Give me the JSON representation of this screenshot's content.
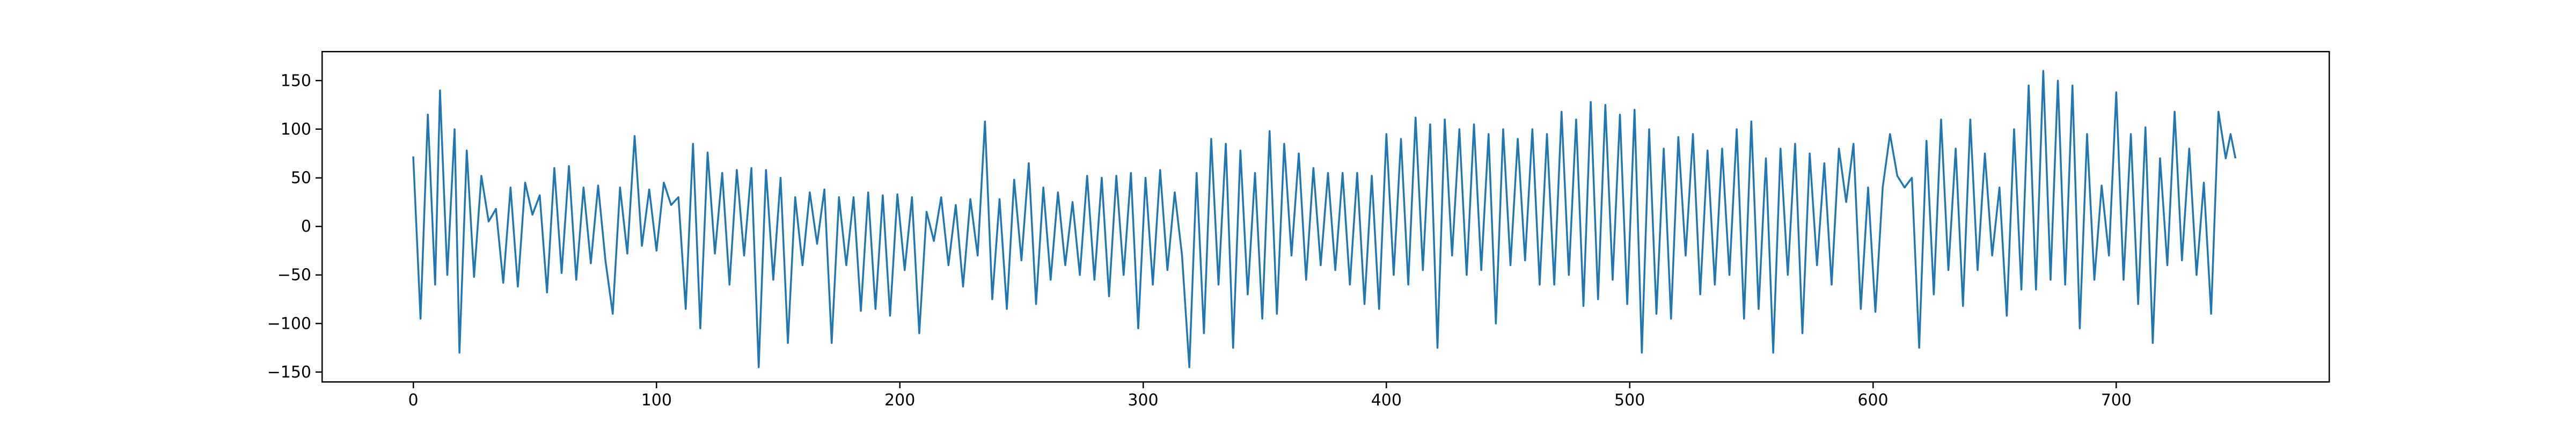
{
  "chart_data": {
    "type": "line",
    "title": "",
    "xlabel": "",
    "ylabel": "",
    "xlim": [
      -37.5,
      787.5
    ],
    "ylim": [
      -160,
      180
    ],
    "grid": false,
    "legend": "none",
    "colors": {
      "line": "#1f77b4",
      "axes": "#000000",
      "background": "#ffffff"
    },
    "x_ticks": [
      0,
      100,
      200,
      300,
      400,
      500,
      600,
      700
    ],
    "x_tick_labels": [
      "0",
      "100",
      "200",
      "300",
      "400",
      "500",
      "600",
      "700"
    ],
    "y_ticks": [
      -150,
      -100,
      -50,
      0,
      50,
      100,
      150
    ],
    "y_tick_labels": [
      "−150",
      "−100",
      "−50",
      "0",
      "50",
      "100",
      "150"
    ],
    "series": [
      {
        "x_start": 0,
        "x_end": 749,
        "x_step": 1,
        "keypoints": [
          [
            0,
            72
          ],
          [
            3,
            -95
          ],
          [
            6,
            115
          ],
          [
            9,
            -60
          ],
          [
            11,
            140
          ],
          [
            14,
            -50
          ],
          [
            17,
            100
          ],
          [
            19,
            -130
          ],
          [
            22,
            78
          ],
          [
            25,
            -52
          ],
          [
            28,
            52
          ],
          [
            31,
            5
          ],
          [
            34,
            18
          ],
          [
            37,
            -58
          ],
          [
            40,
            40
          ],
          [
            43,
            -62
          ],
          [
            46,
            45
          ],
          [
            49,
            12
          ],
          [
            52,
            32
          ],
          [
            55,
            -68
          ],
          [
            58,
            60
          ],
          [
            61,
            -48
          ],
          [
            64,
            62
          ],
          [
            67,
            -55
          ],
          [
            70,
            40
          ],
          [
            73,
            -38
          ],
          [
            76,
            42
          ],
          [
            79,
            -35
          ],
          [
            82,
            -90
          ],
          [
            85,
            40
          ],
          [
            88,
            -28
          ],
          [
            91,
            93
          ],
          [
            94,
            -20
          ],
          [
            97,
            38
          ],
          [
            100,
            -25
          ],
          [
            103,
            45
          ],
          [
            106,
            22
          ],
          [
            109,
            30
          ],
          [
            112,
            -85
          ],
          [
            115,
            85
          ],
          [
            118,
            -105
          ],
          [
            121,
            76
          ],
          [
            124,
            -28
          ],
          [
            127,
            55
          ],
          [
            130,
            -60
          ],
          [
            133,
            58
          ],
          [
            136,
            -30
          ],
          [
            139,
            60
          ],
          [
            142,
            -145
          ],
          [
            145,
            58
          ],
          [
            148,
            -55
          ],
          [
            151,
            50
          ],
          [
            154,
            -120
          ],
          [
            157,
            30
          ],
          [
            160,
            -40
          ],
          [
            163,
            35
          ],
          [
            166,
            -18
          ],
          [
            169,
            38
          ],
          [
            172,
            -120
          ],
          [
            175,
            30
          ],
          [
            178,
            -40
          ],
          [
            181,
            30
          ],
          [
            184,
            -87
          ],
          [
            187,
            35
          ],
          [
            190,
            -85
          ],
          [
            193,
            32
          ],
          [
            196,
            -92
          ],
          [
            199,
            33
          ],
          [
            202,
            -45
          ],
          [
            205,
            30
          ],
          [
            208,
            -110
          ],
          [
            211,
            15
          ],
          [
            214,
            -15
          ],
          [
            217,
            30
          ],
          [
            220,
            -40
          ],
          [
            223,
            22
          ],
          [
            226,
            -62
          ],
          [
            229,
            28
          ],
          [
            232,
            -30
          ],
          [
            235,
            108
          ],
          [
            238,
            -75
          ],
          [
            241,
            28
          ],
          [
            244,
            -85
          ],
          [
            247,
            48
          ],
          [
            250,
            -35
          ],
          [
            253,
            65
          ],
          [
            256,
            -80
          ],
          [
            259,
            40
          ],
          [
            262,
            -55
          ],
          [
            265,
            35
          ],
          [
            268,
            -40
          ],
          [
            271,
            25
          ],
          [
            274,
            -50
          ],
          [
            277,
            52
          ],
          [
            280,
            -55
          ],
          [
            283,
            50
          ],
          [
            286,
            -72
          ],
          [
            289,
            52
          ],
          [
            292,
            -50
          ],
          [
            295,
            55
          ],
          [
            298,
            -105
          ],
          [
            301,
            50
          ],
          [
            304,
            -60
          ],
          [
            307,
            58
          ],
          [
            310,
            -45
          ],
          [
            313,
            35
          ],
          [
            316,
            -30
          ],
          [
            319,
            -145
          ],
          [
            322,
            55
          ],
          [
            325,
            -110
          ],
          [
            328,
            90
          ],
          [
            331,
            -60
          ],
          [
            334,
            85
          ],
          [
            337,
            -125
          ],
          [
            340,
            78
          ],
          [
            343,
            -70
          ],
          [
            346,
            55
          ],
          [
            349,
            -95
          ],
          [
            352,
            98
          ],
          [
            355,
            -90
          ],
          [
            358,
            85
          ],
          [
            361,
            -30
          ],
          [
            364,
            75
          ],
          [
            367,
            -55
          ],
          [
            370,
            60
          ],
          [
            373,
            -40
          ],
          [
            376,
            55
          ],
          [
            379,
            -45
          ],
          [
            382,
            55
          ],
          [
            385,
            -60
          ],
          [
            388,
            55
          ],
          [
            391,
            -80
          ],
          [
            394,
            52
          ],
          [
            397,
            -85
          ],
          [
            400,
            95
          ],
          [
            403,
            -50
          ],
          [
            406,
            90
          ],
          [
            409,
            -60
          ],
          [
            412,
            112
          ],
          [
            415,
            -45
          ],
          [
            418,
            105
          ],
          [
            421,
            -125
          ],
          [
            424,
            110
          ],
          [
            427,
            -30
          ],
          [
            430,
            100
          ],
          [
            433,
            -50
          ],
          [
            436,
            105
          ],
          [
            439,
            -45
          ],
          [
            442,
            95
          ],
          [
            445,
            -100
          ],
          [
            448,
            100
          ],
          [
            451,
            -40
          ],
          [
            454,
            90
          ],
          [
            457,
            -35
          ],
          [
            460,
            100
          ],
          [
            463,
            -60
          ],
          [
            466,
            95
          ],
          [
            469,
            -60
          ],
          [
            472,
            118
          ],
          [
            475,
            -50
          ],
          [
            478,
            110
          ],
          [
            481,
            -82
          ],
          [
            484,
            128
          ],
          [
            487,
            -75
          ],
          [
            490,
            125
          ],
          [
            493,
            -55
          ],
          [
            496,
            115
          ],
          [
            499,
            -80
          ],
          [
            502,
            120
          ],
          [
            505,
            -130
          ],
          [
            508,
            100
          ],
          [
            511,
            -90
          ],
          [
            514,
            80
          ],
          [
            517,
            -95
          ],
          [
            520,
            92
          ],
          [
            523,
            -30
          ],
          [
            526,
            95
          ],
          [
            529,
            -70
          ],
          [
            532,
            78
          ],
          [
            535,
            -60
          ],
          [
            538,
            80
          ],
          [
            541,
            -50
          ],
          [
            544,
            100
          ],
          [
            547,
            -95
          ],
          [
            550,
            108
          ],
          [
            553,
            -85
          ],
          [
            556,
            70
          ],
          [
            559,
            -130
          ],
          [
            562,
            80
          ],
          [
            565,
            -50
          ],
          [
            568,
            85
          ],
          [
            571,
            -110
          ],
          [
            574,
            75
          ],
          [
            577,
            -40
          ],
          [
            580,
            65
          ],
          [
            583,
            -60
          ],
          [
            586,
            80
          ],
          [
            589,
            25
          ],
          [
            592,
            85
          ],
          [
            595,
            -85
          ],
          [
            598,
            40
          ],
          [
            601,
            -88
          ],
          [
            604,
            40
          ],
          [
            607,
            95
          ],
          [
            610,
            52
          ],
          [
            613,
            40
          ],
          [
            616,
            50
          ],
          [
            619,
            -125
          ],
          [
            622,
            88
          ],
          [
            625,
            -70
          ],
          [
            628,
            110
          ],
          [
            631,
            -45
          ],
          [
            634,
            80
          ],
          [
            637,
            -82
          ],
          [
            640,
            110
          ],
          [
            643,
            -45
          ],
          [
            646,
            75
          ],
          [
            649,
            -30
          ],
          [
            652,
            40
          ],
          [
            655,
            -92
          ],
          [
            658,
            100
          ],
          [
            661,
            -65
          ],
          [
            664,
            145
          ],
          [
            667,
            -65
          ],
          [
            670,
            160
          ],
          [
            673,
            -55
          ],
          [
            676,
            150
          ],
          [
            679,
            -60
          ],
          [
            682,
            145
          ],
          [
            685,
            -105
          ],
          [
            688,
            95
          ],
          [
            691,
            -55
          ],
          [
            694,
            42
          ],
          [
            697,
            -30
          ],
          [
            700,
            138
          ],
          [
            703,
            -55
          ],
          [
            706,
            95
          ],
          [
            709,
            -80
          ],
          [
            712,
            102
          ],
          [
            715,
            -120
          ],
          [
            718,
            70
          ],
          [
            721,
            -40
          ],
          [
            724,
            118
          ],
          [
            727,
            -35
          ],
          [
            730,
            80
          ],
          [
            733,
            -50
          ],
          [
            736,
            45
          ],
          [
            739,
            -90
          ],
          [
            742,
            118
          ],
          [
            745,
            70
          ],
          [
            747,
            95
          ],
          [
            749,
            70
          ]
        ]
      }
    ]
  }
}
